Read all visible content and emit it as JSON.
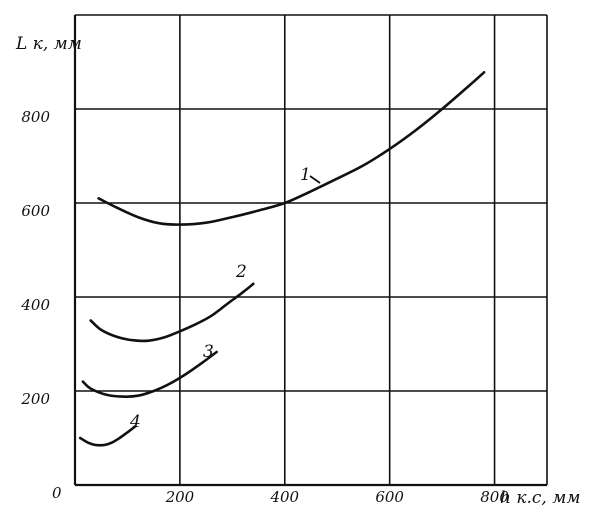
{
  "chart_data": {
    "type": "line",
    "xlabel": "h к.с, мм",
    "ylabel": "L к, мм",
    "xlim": [
      0,
      900
    ],
    "ylim": [
      0,
      1000
    ],
    "x_ticks": [
      200,
      400,
      600,
      800
    ],
    "y_ticks": [
      200,
      400,
      600,
      800
    ],
    "x_tick_labels": [
      "200",
      "400",
      "600",
      "800"
    ],
    "y_tick_labels": [
      "200",
      "400",
      "600",
      "800"
    ],
    "origin_label": "0",
    "grid": true,
    "series": [
      {
        "name": "1",
        "x": [
          45,
          80,
          120,
          160,
          200,
          250,
          300,
          350,
          400,
          450,
          500,
          550,
          600,
          650,
          700,
          750,
          780
        ],
        "y": [
          610,
          590,
          570,
          557,
          554,
          558,
          570,
          584,
          600,
          625,
          652,
          680,
          715,
          755,
          800,
          848,
          878
        ]
      },
      {
        "name": "2",
        "x": [
          30,
          50,
          80,
          110,
          140,
          170,
          200,
          230,
          260,
          290,
          320,
          340
        ],
        "y": [
          350,
          330,
          315,
          308,
          307,
          314,
          327,
          342,
          360,
          385,
          410,
          428
        ]
      },
      {
        "name": "3",
        "x": [
          15,
          30,
          60,
          90,
          120,
          150,
          180,
          210,
          240,
          270
        ],
        "y": [
          220,
          205,
          192,
          188,
          190,
          200,
          215,
          235,
          258,
          283
        ]
      },
      {
        "name": "4",
        "x": [
          10,
          25,
          40,
          55,
          70,
          85,
          100,
          115
        ],
        "y": [
          100,
          90,
          85,
          85,
          90,
          100,
          112,
          125
        ]
      }
    ]
  }
}
